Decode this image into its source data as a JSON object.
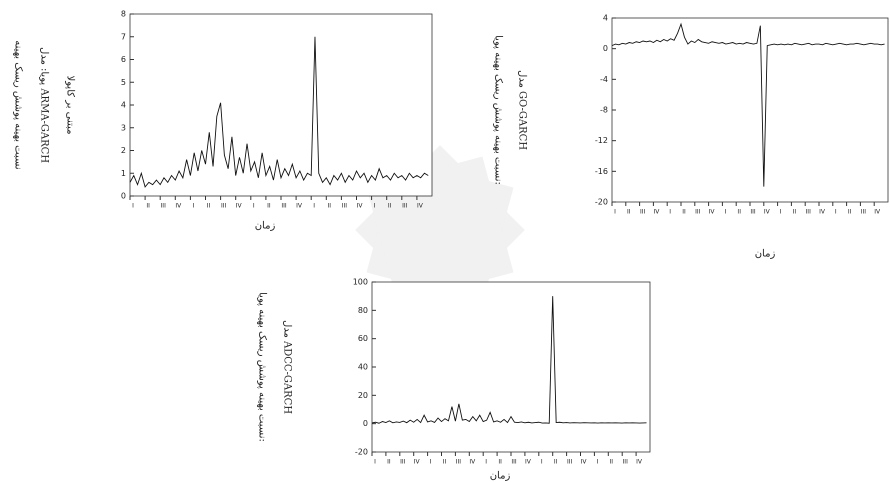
{
  "chart_data": [
    {
      "type": "line",
      "y_label": [
        "نسبت بهینه پوشش ریسک بهینه",
        "پویا: مدل ARMA-GARCH",
        "مبتنی بر کاپولا"
      ],
      "x_label": "زمان",
      "xlim": [
        0,
        80
      ],
      "xticks": [
        {
          "value": 0,
          "label": "I"
        },
        {
          "value": 4,
          "label": "II"
        },
        {
          "value": 8,
          "label": "III"
        },
        {
          "value": 12,
          "label": "IV"
        },
        {
          "value": 16,
          "label": "I"
        },
        {
          "value": 20,
          "label": "II"
        },
        {
          "value": 24,
          "label": "III"
        },
        {
          "value": 28,
          "label": "IV"
        },
        {
          "value": 32,
          "label": "I"
        },
        {
          "value": 36,
          "label": "II"
        },
        {
          "value": 40,
          "label": "III"
        },
        {
          "value": 44,
          "label": "IV"
        },
        {
          "value": 48,
          "label": "I"
        },
        {
          "value": 52,
          "label": "II"
        },
        {
          "value": 56,
          "label": "III"
        },
        {
          "value": 60,
          "label": "IV"
        },
        {
          "value": 64,
          "label": "I"
        },
        {
          "value": 68,
          "label": "II"
        },
        {
          "value": 72,
          "label": "III"
        },
        {
          "value": 76,
          "label": "IV"
        }
      ],
      "ylim": [
        0,
        8
      ],
      "yticks": [
        0,
        1,
        2,
        3,
        4,
        5,
        6,
        7,
        8
      ],
      "series": [
        {
          "color": "#111111",
          "values": [
            0.6,
            0.9,
            0.5,
            1.0,
            0.4,
            0.6,
            0.5,
            0.7,
            0.5,
            0.8,
            0.6,
            0.9,
            0.7,
            1.1,
            0.8,
            1.6,
            0.9,
            1.9,
            1.1,
            2.0,
            1.4,
            2.8,
            1.3,
            3.5,
            4.1,
            1.8,
            1.2,
            2.6,
            0.9,
            1.7,
            1.0,
            2.3,
            1.1,
            1.5,
            0.8,
            1.9,
            0.9,
            1.3,
            0.7,
            1.6,
            0.8,
            1.2,
            0.9,
            1.4,
            0.8,
            1.1,
            0.7,
            1.0,
            0.9,
            7.0,
            1.0,
            0.6,
            0.8,
            0.5,
            0.9,
            0.7,
            1.0,
            0.6,
            0.9,
            0.7,
            1.1,
            0.8,
            1.0,
            0.6,
            0.9,
            0.7,
            1.2,
            0.8,
            0.9,
            0.7,
            1.0,
            0.8,
            0.9,
            0.7,
            1.0,
            0.8,
            0.9,
            0.8,
            1.0,
            0.9
          ]
        }
      ]
    },
    {
      "type": "line",
      "y_label": [
        "نسبت بهینه پوشش ریسک بهینه پویا:",
        "مدل GO-GARCH"
      ],
      "x_label": "زمان",
      "xlim": [
        0,
        80
      ],
      "xticks": [
        {
          "value": 0,
          "label": "I"
        },
        {
          "value": 4,
          "label": "II"
        },
        {
          "value": 8,
          "label": "III"
        },
        {
          "value": 12,
          "label": "IV"
        },
        {
          "value": 16,
          "label": "I"
        },
        {
          "value": 20,
          "label": "II"
        },
        {
          "value": 24,
          "label": "III"
        },
        {
          "value": 28,
          "label": "IV"
        },
        {
          "value": 32,
          "label": "I"
        },
        {
          "value": 36,
          "label": "II"
        },
        {
          "value": 40,
          "label": "III"
        },
        {
          "value": 44,
          "label": "IV"
        },
        {
          "value": 48,
          "label": "I"
        },
        {
          "value": 52,
          "label": "II"
        },
        {
          "value": 56,
          "label": "III"
        },
        {
          "value": 60,
          "label": "IV"
        },
        {
          "value": 64,
          "label": "I"
        },
        {
          "value": 68,
          "label": "II"
        },
        {
          "value": 72,
          "label": "III"
        },
        {
          "value": 76,
          "label": "IV"
        }
      ],
      "ylim": [
        -20,
        4
      ],
      "yticks": [
        4,
        0,
        -4,
        -8,
        -12,
        -16,
        -20
      ],
      "series": [
        {
          "color": "#111111",
          "values": [
            0.4,
            0.6,
            0.5,
            0.7,
            0.6,
            0.8,
            0.7,
            0.9,
            0.8,
            1.0,
            0.9,
            1.0,
            0.8,
            1.1,
            0.9,
            1.2,
            1.0,
            1.3,
            1.1,
            2.0,
            3.2,
            1.5,
            0.6,
            1.0,
            0.8,
            1.2,
            0.9,
            0.8,
            0.7,
            0.9,
            0.8,
            0.7,
            0.8,
            0.6,
            0.7,
            0.8,
            0.6,
            0.7,
            0.6,
            0.8,
            0.7,
            0.6,
            0.7,
            3.0,
            -18.0,
            0.4,
            0.5,
            0.6,
            0.5,
            0.6,
            0.5,
            0.6,
            0.5,
            0.7,
            0.6,
            0.5,
            0.6,
            0.7,
            0.5,
            0.6,
            0.6,
            0.5,
            0.7,
            0.6,
            0.5,
            0.6,
            0.7,
            0.6,
            0.5,
            0.6,
            0.6,
            0.7,
            0.6,
            0.5,
            0.6,
            0.7,
            0.6,
            0.6,
            0.5,
            0.6
          ]
        }
      ]
    },
    {
      "type": "line",
      "y_label": [
        "نسبت بهینه پوشش ریسک بهینه پویا:",
        "مدل ADCC-GARCH"
      ],
      "x_label": "زمان",
      "xlim": [
        0,
        80
      ],
      "xticks": [
        {
          "value": 0,
          "label": "I"
        },
        {
          "value": 4,
          "label": "II"
        },
        {
          "value": 8,
          "label": "III"
        },
        {
          "value": 12,
          "label": "IV"
        },
        {
          "value": 16,
          "label": "I"
        },
        {
          "value": 20,
          "label": "II"
        },
        {
          "value": 24,
          "label": "III"
        },
        {
          "value": 28,
          "label": "IV"
        },
        {
          "value": 32,
          "label": "I"
        },
        {
          "value": 36,
          "label": "II"
        },
        {
          "value": 40,
          "label": "III"
        },
        {
          "value": 44,
          "label": "IV"
        },
        {
          "value": 48,
          "label": "I"
        },
        {
          "value": 52,
          "label": "II"
        },
        {
          "value": 56,
          "label": "III"
        },
        {
          "value": 60,
          "label": "IV"
        },
        {
          "value": 64,
          "label": "I"
        },
        {
          "value": 68,
          "label": "II"
        },
        {
          "value": 72,
          "label": "III"
        },
        {
          "value": 76,
          "label": "IV"
        }
      ],
      "ylim": [
        -20,
        100
      ],
      "yticks": [
        -20,
        0,
        20,
        40,
        60,
        80,
        100
      ],
      "series": [
        {
          "color": "#111111",
          "values": [
            0.5,
            1.0,
            0.3,
            1.5,
            0.8,
            2.0,
            0.6,
            1.2,
            0.9,
            1.8,
            0.7,
            2.5,
            1.0,
            3.0,
            0.8,
            6.0,
            1.2,
            2.0,
            0.9,
            4.0,
            1.5,
            3.5,
            2.0,
            12.0,
            1.8,
            14.0,
            2.5,
            3.0,
            1.5,
            5.0,
            2.0,
            6.0,
            1.5,
            2.5,
            8.0,
            1.2,
            2.0,
            1.0,
            3.0,
            0.8,
            5.0,
            1.0,
            0.8,
            1.2,
            0.6,
            1.0,
            0.5,
            0.8,
            1.0,
            0.4,
            0.5,
            0.3,
            90.0,
            0.8,
            1.0,
            0.6,
            0.8,
            0.5,
            0.7,
            0.6,
            0.5,
            0.7,
            0.6,
            0.5,
            0.6,
            0.4,
            0.6,
            0.5,
            0.6,
            0.5,
            0.6,
            0.5,
            0.4,
            0.6,
            0.5,
            0.6,
            0.5,
            0.4,
            0.5,
            0.6
          ]
        }
      ]
    }
  ]
}
